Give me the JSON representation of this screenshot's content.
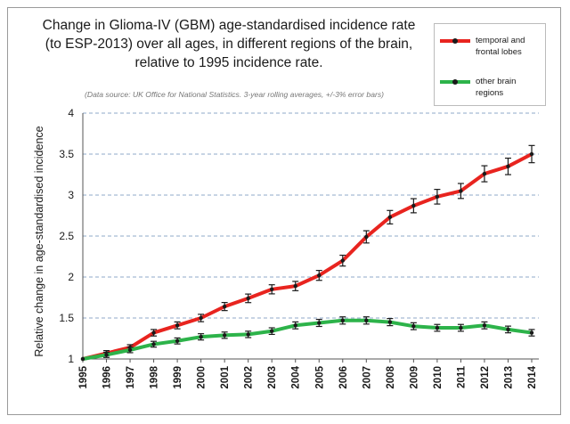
{
  "title_lines": [
    "Change in Glioma-IV (GBM) age-standardised incidence rate",
    "(to ESP-2013) over all ages, in different regions of the brain,",
    "relative to 1995 incidence rate."
  ],
  "source_note": "(Data source: UK Office for National Statistics.  3-year rolling averages, +/-3% error bars)",
  "legend": [
    {
      "label_lines": [
        "temporal and",
        "frontal lobes"
      ],
      "color": "#e8241f"
    },
    {
      "label_lines": [
        "other brain",
        "regions"
      ],
      "color": "#2db34a"
    }
  ],
  "chart_data": {
    "type": "line",
    "title": "Change in Glioma-IV (GBM) age-standardised incidence rate (to ESP-2013) over all ages, in different regions of the brain, relative to 1995 incidence rate.",
    "xlabel": "",
    "ylabel": "Relative change in age-standardised incidence",
    "ylim": [
      1,
      4
    ],
    "yticks": [
      "1",
      "1.5",
      "2",
      "2.5",
      "3",
      "3.5",
      "4"
    ],
    "grid": "horizontal dashed",
    "legend_position": "top-right",
    "error_bars": "+/-3%",
    "categories": [
      "1995",
      "1996",
      "1997",
      "1998",
      "1999",
      "2000",
      "2001",
      "2002",
      "2003",
      "2004",
      "2005",
      "2006",
      "2007",
      "2008",
      "2009",
      "2010",
      "2011",
      "2012",
      "2013",
      "2014"
    ],
    "series": [
      {
        "name": "temporal and frontal lobes",
        "color": "#e8241f",
        "values": [
          1.0,
          1.07,
          1.14,
          1.32,
          1.41,
          1.5,
          1.64,
          1.74,
          1.85,
          1.89,
          2.02,
          2.2,
          2.49,
          2.73,
          2.87,
          2.98,
          3.05,
          3.26,
          3.35,
          3.5
        ]
      },
      {
        "name": "other brain regions",
        "color": "#2db34a",
        "values": [
          1.0,
          1.05,
          1.11,
          1.18,
          1.22,
          1.27,
          1.29,
          1.3,
          1.34,
          1.41,
          1.44,
          1.47,
          1.47,
          1.45,
          1.4,
          1.38,
          1.38,
          1.41,
          1.36,
          1.32
        ]
      }
    ]
  }
}
